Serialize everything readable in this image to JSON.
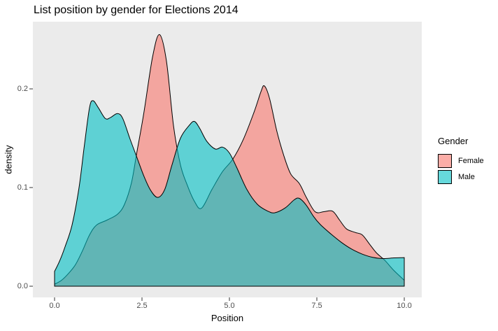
{
  "chart_data": {
    "type": "area",
    "subtype": "density",
    "title": "List position by gender for Elections 2014",
    "xlabel": "Position",
    "ylabel": "density",
    "legend_title": "Gender",
    "legend_position": "right",
    "grid": false,
    "panel_bg": "#EBEBEB",
    "tick_color": "#333333",
    "tick_label_color": "#4D4D4D",
    "fill_alpha": 0.6,
    "outline_color": "#000000",
    "xlim": [
      -0.62,
      10.5
    ],
    "ylim": [
      -0.0113,
      0.268
    ],
    "x_ticks": [
      0.0,
      2.5,
      5.0,
      7.5,
      10.0
    ],
    "x_tick_labels": [
      "0.0",
      "2.5",
      "5.0",
      "7.5",
      "10.0"
    ],
    "y_ticks": [
      0.0,
      0.1,
      0.2
    ],
    "y_tick_labels": [
      "0.0",
      "0.1",
      "0.2"
    ],
    "series": [
      {
        "name": "Female",
        "fill": "#F8766D",
        "points": [
          [
            0,
            0.002
          ],
          [
            0.2,
            0.006
          ],
          [
            0.4,
            0.013
          ],
          [
            0.6,
            0.022
          ],
          [
            0.8,
            0.036
          ],
          [
            1.0,
            0.052
          ],
          [
            1.2,
            0.062
          ],
          [
            1.5,
            0.067
          ],
          [
            1.8,
            0.073
          ],
          [
            2.0,
            0.083
          ],
          [
            2.2,
            0.105
          ],
          [
            2.35,
            0.135
          ],
          [
            2.55,
            0.175
          ],
          [
            2.8,
            0.232
          ],
          [
            3.0,
            0.255
          ],
          [
            3.2,
            0.228
          ],
          [
            3.4,
            0.163
          ],
          [
            3.6,
            0.123
          ],
          [
            3.8,
            0.102
          ],
          [
            4.0,
            0.086
          ],
          [
            4.2,
            0.079
          ],
          [
            4.5,
            0.098
          ],
          [
            4.8,
            0.116
          ],
          [
            5.1,
            0.129
          ],
          [
            5.4,
            0.149
          ],
          [
            5.7,
            0.176
          ],
          [
            5.9,
            0.197
          ],
          [
            6.0,
            0.203
          ],
          [
            6.15,
            0.19
          ],
          [
            6.35,
            0.158
          ],
          [
            6.55,
            0.133
          ],
          [
            6.75,
            0.114
          ],
          [
            7.0,
            0.104
          ],
          [
            7.2,
            0.09
          ],
          [
            7.45,
            0.0755
          ],
          [
            7.7,
            0.0755
          ],
          [
            7.95,
            0.076
          ],
          [
            8.15,
            0.067
          ],
          [
            8.35,
            0.058
          ],
          [
            8.6,
            0.0545
          ],
          [
            8.8,
            0.052
          ],
          [
            9.0,
            0.043
          ],
          [
            9.2,
            0.034
          ],
          [
            9.45,
            0.026
          ],
          [
            9.7,
            0.016
          ],
          [
            10,
            0.006
          ]
        ]
      },
      {
        "name": "Male",
        "fill": "#00BFC4",
        "points": [
          [
            0,
            0.015
          ],
          [
            0.15,
            0.026
          ],
          [
            0.3,
            0.04
          ],
          [
            0.5,
            0.062
          ],
          [
            0.7,
            0.1
          ],
          [
            0.85,
            0.142
          ],
          [
            1.0,
            0.181
          ],
          [
            1.1,
            0.188
          ],
          [
            1.25,
            0.181
          ],
          [
            1.45,
            0.17
          ],
          [
            1.6,
            0.171
          ],
          [
            1.8,
            0.175
          ],
          [
            1.95,
            0.17
          ],
          [
            2.15,
            0.15
          ],
          [
            2.35,
            0.131
          ],
          [
            2.55,
            0.112
          ],
          [
            2.75,
            0.097
          ],
          [
            2.95,
            0.09
          ],
          [
            3.15,
            0.098
          ],
          [
            3.35,
            0.122
          ],
          [
            3.6,
            0.15
          ],
          [
            3.85,
            0.163
          ],
          [
            4.0,
            0.167
          ],
          [
            4.15,
            0.16
          ],
          [
            4.35,
            0.147
          ],
          [
            4.6,
            0.139
          ],
          [
            4.8,
            0.141
          ],
          [
            5.0,
            0.135
          ],
          [
            5.2,
            0.121
          ],
          [
            5.5,
            0.098
          ],
          [
            5.8,
            0.083
          ],
          [
            6.1,
            0.076
          ],
          [
            6.3,
            0.0745
          ],
          [
            6.6,
            0.0795
          ],
          [
            6.85,
            0.0875
          ],
          [
            7.0,
            0.089
          ],
          [
            7.2,
            0.082
          ],
          [
            7.4,
            0.071
          ],
          [
            7.6,
            0.0625
          ],
          [
            7.9,
            0.053
          ],
          [
            8.2,
            0.0445
          ],
          [
            8.5,
            0.0375
          ],
          [
            8.8,
            0.0325
          ],
          [
            9.1,
            0.0292
          ],
          [
            9.4,
            0.028
          ],
          [
            9.7,
            0.0287
          ],
          [
            10,
            0.029
          ]
        ]
      }
    ]
  }
}
